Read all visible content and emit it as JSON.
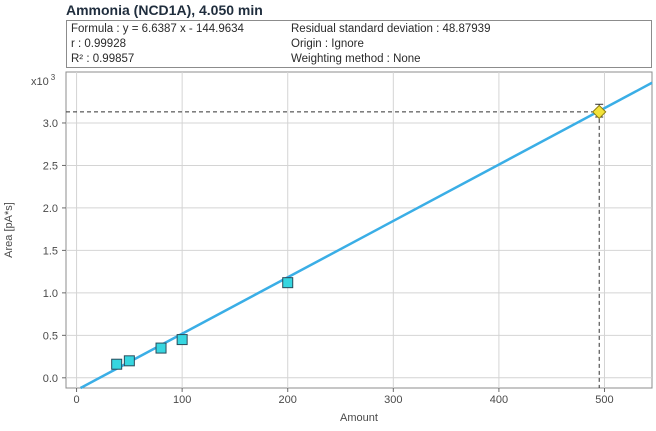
{
  "title": "Ammonia (NCD1A), 4.050 min",
  "stats": {
    "formula": "Formula : y = 6.6387 x - 144.9634",
    "r": "r : 0.99928",
    "r2": "R² : 0.99857",
    "residual": "Residual standard deviation : 48.87939",
    "origin": "Origin : Ignore",
    "weighting": "Weighting method : None"
  },
  "chart_data": {
    "type": "scatter",
    "xlabel": "Amount",
    "ylabel": "Area [pA*s]",
    "y_multiplier_label": "x10",
    "y_multiplier_exp": "3",
    "xlim": [
      -10,
      545
    ],
    "ylim": [
      -0.12,
      3.6
    ],
    "x_ticks": [
      0,
      100,
      200,
      300,
      400,
      500
    ],
    "y_ticks": [
      0.0,
      0.5,
      1.0,
      1.5,
      2.0,
      2.5,
      3.0
    ],
    "x_tick_labels": [
      "0",
      "100",
      "200",
      "300",
      "400",
      "500"
    ],
    "y_tick_labels": [
      "0.0",
      "0.5",
      "1.0",
      "1.5",
      "2.0",
      "2.5",
      "3.0"
    ],
    "grid": true,
    "calibration_points": {
      "x": [
        38,
        50,
        80,
        100,
        200
      ],
      "y": [
        0.16,
        0.2,
        0.35,
        0.45,
        1.12
      ]
    },
    "fit_line": {
      "slope": 6.6387,
      "intercept": -144.9634,
      "x_range": [
        0,
        545
      ],
      "y_scale": 1000
    },
    "sample_point": {
      "x": 495,
      "y": 3.13,
      "error_bar": [
        3.07,
        3.22
      ]
    },
    "colors": {
      "fit_line": "#3aaee6",
      "calibration_marker": "#36d6e0",
      "sample_marker": "#f2e23a",
      "grid": "#d4d4d4"
    }
  }
}
